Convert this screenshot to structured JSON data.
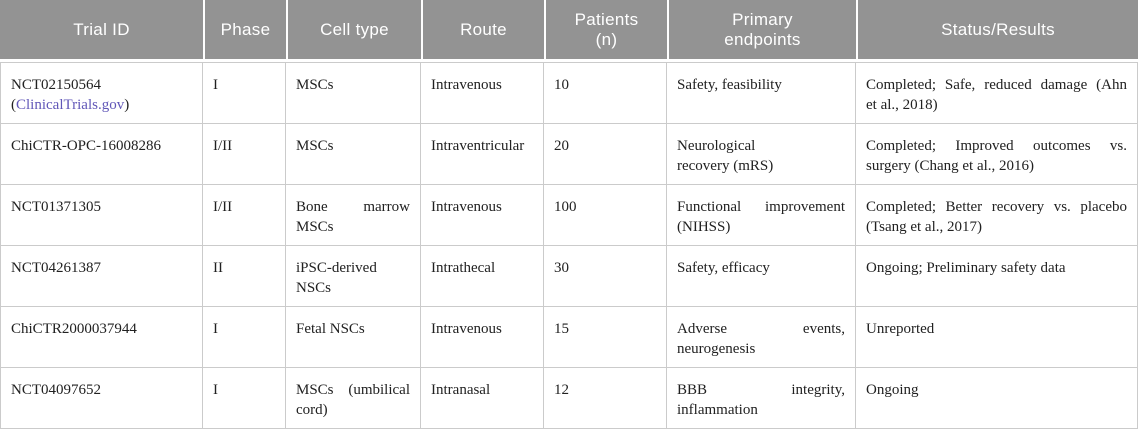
{
  "colors": {
    "header_bg": "#939393",
    "header_text": "#ffffff",
    "border_color": "#cbcbcb",
    "text_color": "#212121",
    "link_color": "#6157b8"
  },
  "table": {
    "columns": [
      {
        "key": "trial_id",
        "label": "Trial ID"
      },
      {
        "key": "phase",
        "label": "Phase"
      },
      {
        "key": "cell_type",
        "label": "Cell type"
      },
      {
        "key": "route",
        "label": "Route"
      },
      {
        "key": "patients",
        "label": "Patients\n(n)"
      },
      {
        "key": "endpoints",
        "label": "Primary\nendpoints"
      },
      {
        "key": "status",
        "label": "Status/Results"
      }
    ],
    "rows": [
      {
        "trial_id": "NCT02150564",
        "trial_link_open": "(",
        "trial_link": "ClinicalTrials.gov",
        "trial_link_close": ")",
        "phase": "I",
        "cell_type": "MSCs",
        "route": "Intravenous",
        "patients": "10",
        "endpoints": "Safety, feasibility",
        "status": "Completed; Safe, reduced damage (Ahn\net al., 2018)"
      },
      {
        "trial_id": "ChiCTR-OPC-16008286",
        "phase": "I/II",
        "cell_type": "MSCs",
        "route": "Intraventricular",
        "patients": "20",
        "endpoints": "Neurological\nrecovery (mRS)",
        "status": "Completed; Improved outcomes vs.\nsurgery (Chang et al., 2016)"
      },
      {
        "trial_id": "NCT01371305",
        "phase": "I/II",
        "cell_type": "Bone marrow\nMSCs",
        "route": "Intravenous",
        "patients": "100",
        "endpoints": "Functional improvement\n(NIHSS)",
        "status": "Completed; Better recovery vs. placebo\n(Tsang et al., 2017)"
      },
      {
        "trial_id": "NCT04261387",
        "phase": "II",
        "cell_type": "iPSC-derived\nNSCs",
        "route": "Intrathecal",
        "patients": "30",
        "endpoints": "Safety, efficacy",
        "status": "Ongoing; Preliminary safety data"
      },
      {
        "trial_id": "ChiCTR2000037944",
        "phase": "I",
        "cell_type": "Fetal NSCs",
        "route": "Intravenous",
        "patients": "15",
        "endpoints": "Adverse events,\nneurogenesis",
        "status": "Unreported"
      },
      {
        "trial_id": "NCT04097652",
        "phase": "I",
        "cell_type": "MSCs (umbilical\ncord)",
        "route": "Intranasal",
        "patients": "12",
        "endpoints": "BBB integrity,\ninflammation",
        "status": "Ongoing"
      }
    ]
  }
}
